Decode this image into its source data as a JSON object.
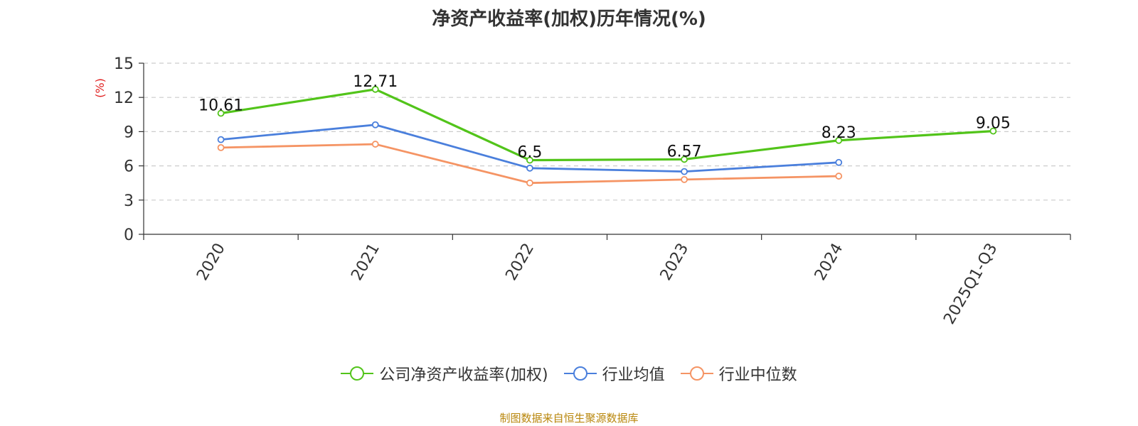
{
  "title": "净资产收益率(加权)历年情况(%)",
  "source_note": "制图数据来自恒生聚源数据库",
  "chart_data": {
    "type": "line",
    "title": "净资产收益率(加权)历年情况(%)",
    "xlabel": "",
    "ylabel": "(%)",
    "ylim": [
      0,
      15
    ],
    "yticks": [
      0,
      3,
      6,
      9,
      12,
      15
    ],
    "grid": true,
    "legend_position": "bottom",
    "categories": [
      "2020",
      "2021",
      "2022",
      "2023",
      "2024",
      "2025Q1-Q3"
    ],
    "series": [
      {
        "name": "公司净资产收益率(加权)",
        "color": "#52c41a",
        "values": [
          10.61,
          12.71,
          6.5,
          6.57,
          8.23,
          9.05
        ],
        "labels": [
          "10.61",
          "12.71",
          "6.5",
          "6.57",
          "8.23",
          "9.05"
        ]
      },
      {
        "name": "行业均值",
        "color": "#4a7fdc",
        "values": [
          8.3,
          9.6,
          5.8,
          5.5,
          6.3,
          null
        ]
      },
      {
        "name": "行业中位数",
        "color": "#f59464",
        "values": [
          7.6,
          7.9,
          4.5,
          4.8,
          5.1,
          null
        ]
      }
    ]
  }
}
